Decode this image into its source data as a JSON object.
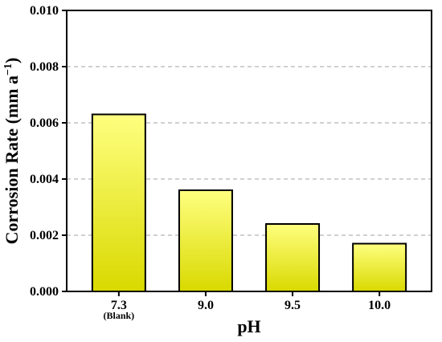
{
  "chart_data": {
    "type": "bar",
    "categories": [
      "7.3",
      "9.0",
      "9.5",
      "10.0"
    ],
    "category_sublabels": [
      "(Blank)",
      "",
      "",
      ""
    ],
    "values": [
      0.0063,
      0.0036,
      0.0024,
      0.0017
    ],
    "title": "",
    "xlabel": "pH",
    "ylabel_main": "Corrosion Rate (mm a",
    "ylabel_sup": "−1",
    "ylabel_close": ")",
    "ylim": [
      0,
      0.01
    ],
    "yticks": [
      "0.000",
      "0.002",
      "0.004",
      "0.006",
      "0.008",
      "0.010"
    ],
    "grid": "horizontal dashed",
    "legend": "none",
    "colors": {
      "bar_top": "#ffff80",
      "bar_bottom": "#d9d900",
      "bar_edge": "#000000",
      "grid": "#a0a0a0"
    }
  }
}
